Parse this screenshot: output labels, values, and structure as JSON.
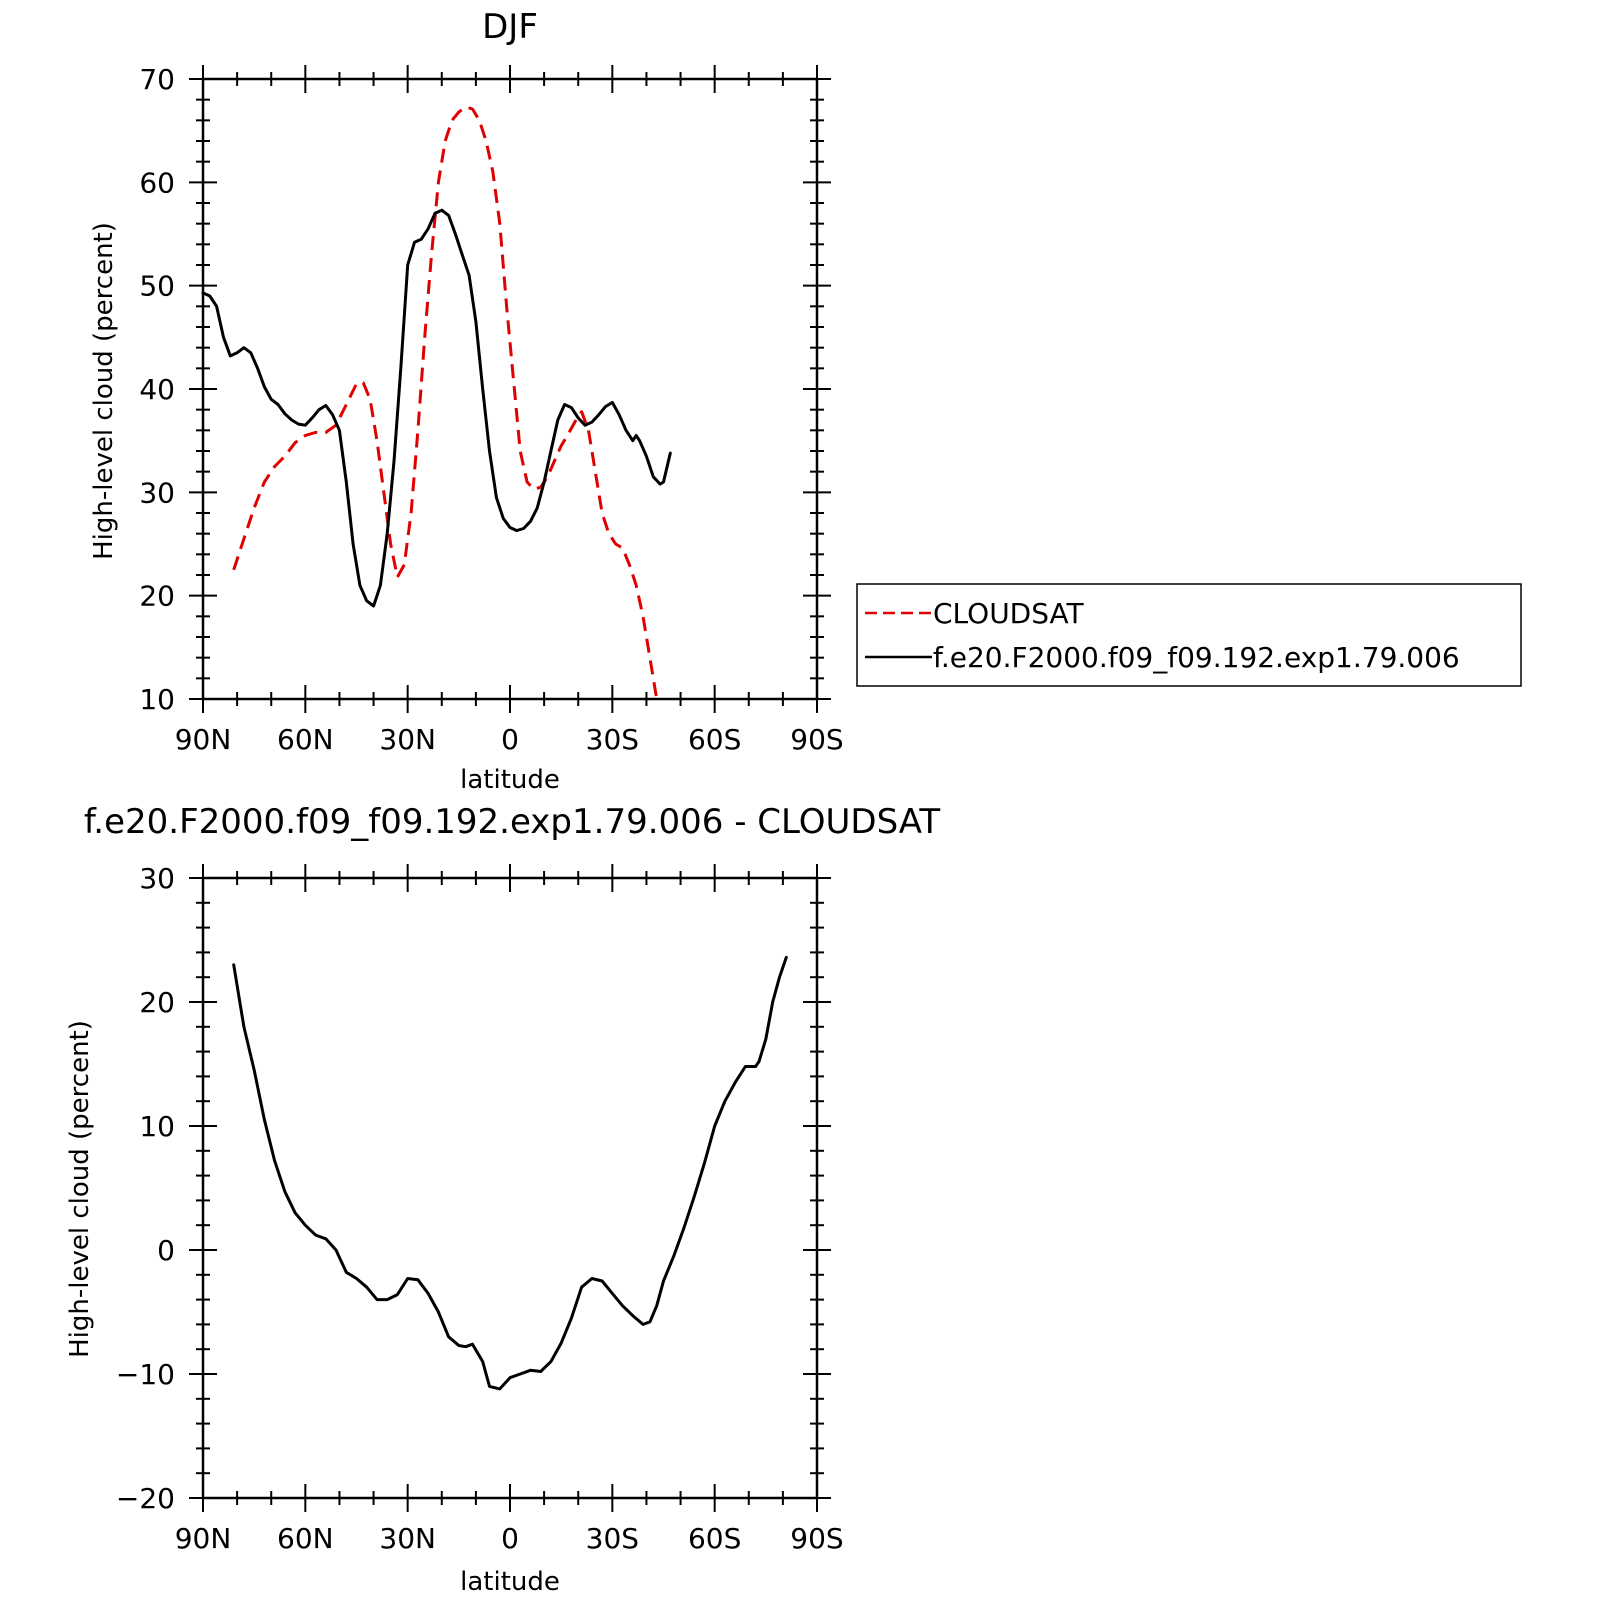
{
  "chart_data": [
    {
      "type": "line",
      "title": "DJF",
      "xlabel": "latitude",
      "ylabel": "High-level cloud (percent)",
      "xlim": [
        90,
        -90
      ],
      "ylim": [
        10,
        70
      ],
      "x_ticks": [
        {
          "value": 90,
          "label": "90N"
        },
        {
          "value": 60,
          "label": "60N"
        },
        {
          "value": 30,
          "label": "30N"
        },
        {
          "value": 0,
          "label": "0"
        },
        {
          "value": -30,
          "label": "30S"
        },
        {
          "value": -60,
          "label": "60S"
        },
        {
          "value": -90,
          "label": "90S"
        }
      ],
      "y_ticks": [
        10,
        20,
        30,
        40,
        50,
        60,
        70
      ],
      "legend": {
        "position": "right",
        "entries": [
          {
            "label": "CLOUDSAT",
            "color": "#e00000",
            "dash": true
          },
          {
            "label": "f.e20.F2000.f09_f09.192.exp1.79.006",
            "color": "#000000",
            "dash": false
          }
        ]
      },
      "series": [
        {
          "name": "CLOUDSAT",
          "color": "#e00000",
          "dash": true,
          "points": [
            [
              81,
              22.5
            ],
            [
              78,
              25.5
            ],
            [
              75,
              28.5
            ],
            [
              72,
              31
            ],
            [
              69,
              32.5
            ],
            [
              66,
              33.5
            ],
            [
              63,
              34.8
            ],
            [
              60,
              35.5
            ],
            [
              57,
              35.8
            ],
            [
              54,
              35.8
            ],
            [
              51,
              36.5
            ],
            [
              48,
              38.5
            ],
            [
              45,
              40.5
            ],
            [
              43,
              40.6
            ],
            [
              41,
              39
            ],
            [
              39,
              35
            ],
            [
              37,
              30
            ],
            [
              35,
              25
            ],
            [
              33,
              21.8
            ],
            [
              31,
              23
            ],
            [
              29,
              28
            ],
            [
              27,
              36
            ],
            [
              25,
              45
            ],
            [
              23,
              53
            ],
            [
              21,
              60
            ],
            [
              19,
              64
            ],
            [
              17,
              66
            ],
            [
              15,
              66.8
            ],
            [
              13,
              67.3
            ],
            [
              11,
              67.1
            ],
            [
              9,
              66
            ],
            [
              7,
              64
            ],
            [
              5,
              61
            ],
            [
              3,
              56
            ],
            [
              1,
              48
            ],
            [
              -1,
              41
            ],
            [
              -3,
              34
            ],
            [
              -5,
              31
            ],
            [
              -7,
              30.3
            ],
            [
              -9,
              30.5
            ],
            [
              -11,
              31.5
            ],
            [
              -13,
              33
            ],
            [
              -15,
              34.5
            ],
            [
              -17,
              35.6
            ],
            [
              -19,
              36.8
            ],
            [
              -21,
              37.8
            ],
            [
              -23,
              36
            ],
            [
              -25,
              32
            ],
            [
              -27,
              28
            ],
            [
              -29,
              26
            ],
            [
              -31,
              25
            ],
            [
              -33,
              24.6
            ],
            [
              -35,
              23
            ],
            [
              -37,
              21
            ],
            [
              -39,
              18
            ],
            [
              -41,
              14
            ],
            [
              -43,
              10
            ]
          ]
        },
        {
          "name": "f.e20.F2000.f09_f09.192.exp1.79.006",
          "color": "#000000",
          "dash": false,
          "points": [
            [
              90,
              49.3
            ],
            [
              88,
              49
            ],
            [
              86,
              48
            ],
            [
              84,
              45
            ],
            [
              82,
              43.2
            ],
            [
              80,
              43.5
            ],
            [
              78,
              44
            ],
            [
              76,
              43.5
            ],
            [
              74,
              42
            ],
            [
              72,
              40.2
            ],
            [
              70,
              39
            ],
            [
              68,
              38.5
            ],
            [
              66,
              37.6
            ],
            [
              64,
              37
            ],
            [
              62,
              36.6
            ],
            [
              60,
              36.5
            ],
            [
              58,
              37.2
            ],
            [
              56,
              38
            ],
            [
              54,
              38.4
            ],
            [
              52,
              37.5
            ],
            [
              50,
              36
            ],
            [
              48,
              31
            ],
            [
              46,
              25
            ],
            [
              44,
              21
            ],
            [
              42,
              19.5
            ],
            [
              40,
              19
            ],
            [
              38,
              21
            ],
            [
              36,
              26
            ],
            [
              34,
              33
            ],
            [
              32,
              42
            ],
            [
              30,
              52
            ],
            [
              28,
              54.2
            ],
            [
              26,
              54.5
            ],
            [
              24,
              55.5
            ],
            [
              22,
              57
            ],
            [
              20,
              57.3
            ],
            [
              18,
              56.8
            ],
            [
              16,
              55
            ],
            [
              14,
              53
            ],
            [
              12,
              51
            ],
            [
              10,
              46.5
            ],
            [
              8,
              40
            ],
            [
              6,
              34
            ],
            [
              4,
              29.5
            ],
            [
              2,
              27.5
            ],
            [
              0,
              26.6
            ],
            [
              -2,
              26.3
            ],
            [
              -4,
              26.5
            ],
            [
              -6,
              27.2
            ],
            [
              -8,
              28.5
            ],
            [
              -10,
              31
            ],
            [
              -12,
              34
            ],
            [
              -14,
              37
            ],
            [
              -16,
              38.5
            ],
            [
              -18,
              38.2
            ],
            [
              -20,
              37.2
            ],
            [
              -22,
              36.5
            ],
            [
              -24,
              36.8
            ],
            [
              -26,
              37.5
            ],
            [
              -28,
              38.3
            ],
            [
              -30,
              38.7
            ],
            [
              -32,
              37.5
            ],
            [
              -34,
              36
            ],
            [
              -36,
              35
            ],
            [
              -37,
              35.5
            ],
            [
              -38,
              35
            ],
            [
              -40,
              33.5
            ],
            [
              -42,
              31.5
            ],
            [
              -44,
              30.8
            ],
            [
              -45,
              31
            ],
            [
              -47,
              33.8
            ]
          ]
        }
      ]
    },
    {
      "type": "line",
      "title": "f.e20.F2000.f09_f09.192.exp1.79.006 - CLOUDSAT",
      "xlabel": "latitude",
      "ylabel": "High-level cloud (percent)",
      "xlim": [
        90,
        -90
      ],
      "ylim": [
        -20,
        30
      ],
      "x_ticks": [
        {
          "value": 90,
          "label": "90N"
        },
        {
          "value": 60,
          "label": "60N"
        },
        {
          "value": 30,
          "label": "30N"
        },
        {
          "value": 0,
          "label": "0"
        },
        {
          "value": -30,
          "label": "30S"
        },
        {
          "value": -60,
          "label": "60S"
        },
        {
          "value": -90,
          "label": "90S"
        }
      ],
      "y_ticks": [
        {
          "value": -20,
          "label": "−20"
        },
        {
          "value": -10,
          "label": "−10"
        },
        {
          "value": 0,
          "label": "0"
        },
        {
          "value": 10,
          "label": "10"
        },
        {
          "value": 20,
          "label": "20"
        },
        {
          "value": 30,
          "label": "30"
        }
      ],
      "series": [
        {
          "name": "",
          "color": "#000000",
          "dash": false,
          "points": [
            [
              81,
              23
            ],
            [
              78,
              18
            ],
            [
              75,
              14.5
            ],
            [
              72,
              10.5
            ],
            [
              69,
              7.2
            ],
            [
              66,
              4.7
            ],
            [
              63,
              3
            ],
            [
              60,
              2
            ],
            [
              57,
              1.2
            ],
            [
              54,
              0.9
            ],
            [
              51,
              0
            ],
            [
              48,
              -1.8
            ],
            [
              45,
              -2.3
            ],
            [
              42,
              -3
            ],
            [
              39,
              -4
            ],
            [
              36,
              -4
            ],
            [
              33,
              -3.6
            ],
            [
              30,
              -2.3
            ],
            [
              27,
              -2.4
            ],
            [
              24,
              -3.5
            ],
            [
              21,
              -5
            ],
            [
              18,
              -7
            ],
            [
              15,
              -7.7
            ],
            [
              13,
              -7.8
            ],
            [
              11,
              -7.6
            ],
            [
              8,
              -9
            ],
            [
              6,
              -11
            ],
            [
              3,
              -11.2
            ],
            [
              0,
              -10.3
            ],
            [
              -3,
              -10
            ],
            [
              -6,
              -9.7
            ],
            [
              -9,
              -9.8
            ],
            [
              -12,
              -9
            ],
            [
              -15,
              -7.5
            ],
            [
              -18,
              -5.5
            ],
            [
              -21,
              -3
            ],
            [
              -24,
              -2.3
            ],
            [
              -27,
              -2.5
            ],
            [
              -30,
              -3.5
            ],
            [
              -33,
              -4.5
            ],
            [
              -36,
              -5.3
            ],
            [
              -39,
              -6
            ],
            [
              -41,
              -5.8
            ],
            [
              -43,
              -4.5
            ],
            [
              -45,
              -2.5
            ],
            [
              -48,
              -0.5
            ],
            [
              -51,
              1.8
            ],
            [
              -54,
              4.3
            ],
            [
              -57,
              7
            ],
            [
              -60,
              10
            ],
            [
              -63,
              12
            ],
            [
              -66,
              13.5
            ],
            [
              -69,
              14.8
            ],
            [
              -72,
              14.8
            ],
            [
              -73,
              15.2
            ],
            [
              -75,
              17
            ],
            [
              -77,
              20
            ],
            [
              -79,
              22
            ],
            [
              -81,
              23.6
            ]
          ]
        }
      ]
    }
  ]
}
